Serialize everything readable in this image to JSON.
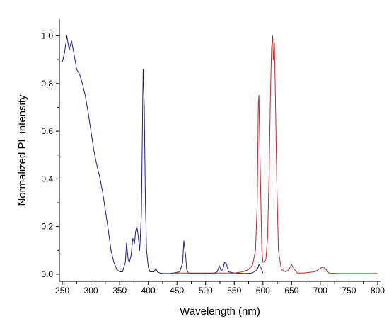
{
  "chart_data": {
    "type": "line",
    "xlabel": "Wavelength (nm)",
    "ylabel": "Normalized PL intensity",
    "xlim": [
      245,
      805
    ],
    "ylim": [
      -0.03,
      1.07
    ],
    "x_ticks": [
      250,
      300,
      350,
      400,
      450,
      500,
      550,
      600,
      650,
      700,
      750,
      800
    ],
    "y_ticks": [
      0.0,
      0.2,
      0.4,
      0.6,
      0.8,
      1.0
    ],
    "y_tick_labels": [
      "0.0",
      "0.2",
      "0.4",
      "0.6",
      "0.8",
      "1.0"
    ],
    "grid": false,
    "legend": "none",
    "series": [
      {
        "color": "#1f1f8c",
        "x": [
          250,
          254,
          258,
          262,
          266,
          270,
          275,
          280,
          285,
          290,
          295,
          300,
          305,
          310,
          315,
          320,
          325,
          330,
          335,
          340,
          345,
          350,
          355,
          360,
          362,
          365,
          367,
          370,
          373,
          376,
          378,
          380,
          382,
          385,
          388,
          391,
          393,
          395,
          397,
          400,
          403,
          406,
          410,
          413,
          416,
          420,
          425,
          440,
          455,
          460,
          462,
          465,
          467,
          470,
          475,
          500,
          515,
          520,
          524,
          527,
          530,
          533,
          536,
          540,
          550,
          570,
          580,
          585,
          590,
          593,
          596,
          600
        ],
        "y": [
          0.89,
          0.93,
          1.0,
          0.94,
          0.98,
          0.93,
          0.86,
          0.84,
          0.8,
          0.75,
          0.68,
          0.6,
          0.52,
          0.46,
          0.41,
          0.35,
          0.27,
          0.19,
          0.1,
          0.05,
          0.02,
          0.01,
          0.01,
          0.05,
          0.13,
          0.06,
          0.05,
          0.08,
          0.15,
          0.13,
          0.18,
          0.2,
          0.17,
          0.1,
          0.25,
          0.86,
          0.7,
          0.3,
          0.1,
          0.03,
          0.01,
          0.01,
          0.01,
          0.025,
          0.01,
          0.005,
          0.003,
          0.003,
          0.01,
          0.05,
          0.14,
          0.08,
          0.02,
          0.005,
          0.003,
          0.003,
          0.005,
          0.01,
          0.035,
          0.015,
          0.02,
          0.05,
          0.045,
          0.01,
          0.005,
          0.003,
          0.005,
          0.01,
          0.02,
          0.04,
          0.03,
          0.005
        ]
      },
      {
        "color": "#c0282b",
        "x": [
          440,
          480,
          520,
          550,
          565,
          575,
          582,
          587,
          590,
          592,
          593,
          594,
          596,
          598,
          600,
          605,
          608,
          611,
          613,
          615,
          617,
          618,
          620,
          622,
          624,
          627,
          632,
          640,
          645,
          650,
          655,
          660,
          670,
          690,
          700,
          705,
          710,
          715,
          730,
          760,
          800
        ],
        "y": [
          0.005,
          0.005,
          0.005,
          0.005,
          0.01,
          0.02,
          0.04,
          0.1,
          0.3,
          0.72,
          0.75,
          0.6,
          0.35,
          0.1,
          0.05,
          0.06,
          0.15,
          0.45,
          0.75,
          0.95,
          1.0,
          0.9,
          0.97,
          0.7,
          0.4,
          0.1,
          0.02,
          0.01,
          0.02,
          0.04,
          0.02,
          0.005,
          0.005,
          0.01,
          0.025,
          0.03,
          0.02,
          0.005,
          0.003,
          0.003,
          0.003
        ]
      }
    ]
  }
}
